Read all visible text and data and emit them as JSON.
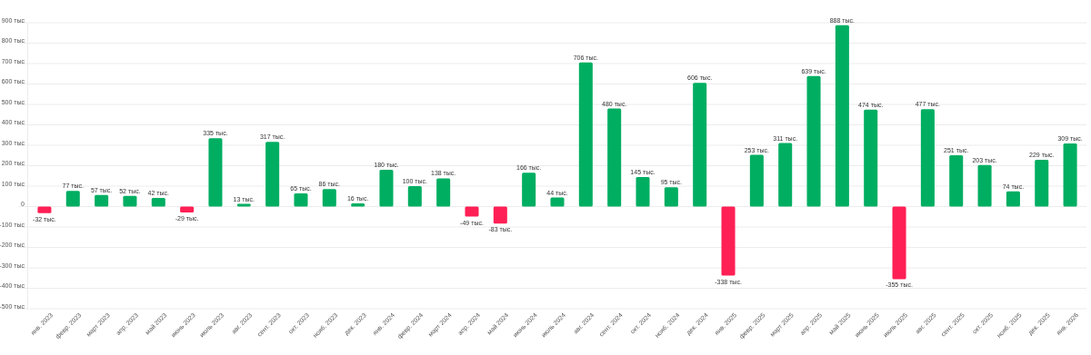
{
  "chart_data": {
    "type": "bar",
    "categories": [
      "янв. 2023",
      "февр. 2023",
      "март 2023",
      "апр. 2023",
      "май 2023",
      "июнь 2023",
      "июль 2023",
      "авг. 2023",
      "сент. 2023",
      "окт. 2023",
      "нояб. 2023",
      "дек. 2023",
      "янв. 2024",
      "февр. 2024",
      "март 2024",
      "апр. 2024",
      "май 2024",
      "июнь 2024",
      "июль 2024",
      "авг. 2024",
      "сент. 2024",
      "окт. 2024",
      "нояб. 2024",
      "дек. 2024",
      "янв. 2025",
      "февр. 2025",
      "март 2025",
      "апр. 2025",
      "май 2025",
      "июнь 2025",
      "июль 2025",
      "авг. 2025",
      "сент. 2025",
      "окт. 2025",
      "нояб. 2025",
      "дек. 2025",
      "янв. 2026"
    ],
    "values": [
      -32,
      77,
      57,
      52,
      42,
      -29,
      335,
      13,
      317,
      65,
      86,
      16,
      180,
      100,
      138,
      -49,
      -83,
      166,
      44,
      706,
      480,
      145,
      95,
      606,
      -338,
      253,
      311,
      639,
      888,
      474,
      -355,
      477,
      251,
      203,
      74,
      229,
      309
    ],
    "value_labels": [
      "-32 тыс.",
      "77 тыс.",
      "57 тыс.",
      "52 тыс.",
      "42 тыс.",
      "-29 тыс.",
      "335 тыс.",
      "13 тыс.",
      "317 тыс.",
      "65 тыс.",
      "86 тыс.",
      "16 тыс.",
      "180 тыс.",
      "100 тыс.",
      "138 тыс.",
      "-49 тыс.",
      "-83 тыс.",
      "166 тыс.",
      "44 тыс.",
      "706 тыс.",
      "480 тыс.",
      "145 тыс.",
      "95 тыс.",
      "606 тыс.",
      "-338 тыс.",
      "253 тыс.",
      "311 тыс.",
      "639 тыс.",
      "888 тыс.",
      "474 тыс.",
      "-355 тыс.",
      "477 тыс.",
      "251 тыс.",
      "203 тыс.",
      "74 тыс.",
      "229 тыс.",
      "309 тыс."
    ],
    "colors": [
      "#ff2055",
      "#00ae62",
      "#00ae62",
      "#00ae62",
      "#00ae62",
      "#ff2055",
      "#00ae62",
      "#00ae62",
      "#00ae62",
      "#00ae62",
      "#00ae62",
      "#00ae62",
      "#00ae62",
      "#00ae62",
      "#00ae62",
      "#ff2055",
      "#ff2055",
      "#00ae62",
      "#00ae62",
      "#00ae62",
      "#00ae62",
      "#00ae62",
      "#00ae62",
      "#00ae62",
      "#ff2055",
      "#00ae62",
      "#00ae62",
      "#00ae62",
      "#00ae62",
      "#00ae62",
      "#ff2055",
      "#00ae62",
      "#00ae62",
      "#00ae62",
      "#00ae62",
      "#00ae62",
      "#00ae62"
    ],
    "ylim": [
      -500,
      900
    ],
    "yticks": [
      {
        "value": -500,
        "label": "-500 тыс"
      },
      {
        "value": -400,
        "label": "-400 тыс"
      },
      {
        "value": -300,
        "label": "-300 тыс"
      },
      {
        "value": -200,
        "label": "-200 тыс"
      },
      {
        "value": -100,
        "label": "-100 тыс"
      },
      0,
      {
        "value": 100,
        "label": "100 тыс"
      },
      {
        "value": 200,
        "label": "200 тыс"
      },
      {
        "value": 300,
        "label": "300 тыс"
      },
      {
        "value": 400,
        "label": "400 тыс"
      },
      {
        "value": 500,
        "label": "500 тыс"
      },
      {
        "value": 600,
        "label": "600 тыс"
      },
      {
        "value": 700,
        "label": "700 тыс"
      },
      {
        "value": 800,
        "label": "800 тыс"
      },
      {
        "value": 900,
        "label": "900 тыс"
      }
    ],
    "grid": "y"
  }
}
